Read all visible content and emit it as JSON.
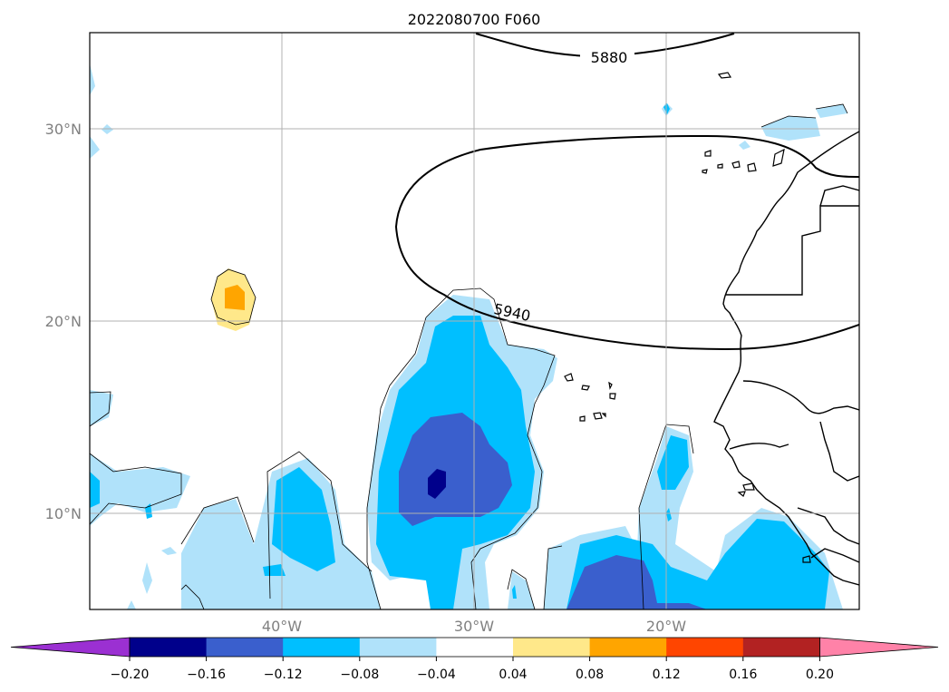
{
  "title": "2022080700 F060",
  "lat_labels": [
    "30°N",
    "20°N",
    "10°N"
  ],
  "lon_labels": [
    "40°W",
    "30°W",
    "20°W"
  ],
  "contour_labels": [
    "5880",
    "5940"
  ],
  "colorbar": {
    "ticks": [
      "−0.20",
      "−0.16",
      "−0.12",
      "−0.08",
      "−0.04",
      "0.04",
      "0.08",
      "0.12",
      "0.16",
      "0.20"
    ],
    "under_color": "#9b30d2",
    "over_color": "#ff82a8",
    "colors": [
      "#00008b",
      "#3a5fcd",
      "#00bfff",
      "#b0e2fa",
      "#ffffff",
      "#ffe88a",
      "#ffa500",
      "#ff4500",
      "#b22222"
    ]
  },
  "field_colors": {
    "neg_light": "#b0e2fa",
    "neg_mid": "#00bfff",
    "neg_strong": "#3a5fcd",
    "neg_max": "#00008b",
    "pos_light": "#ffe88a",
    "pos_mid": "#ffa500"
  }
}
